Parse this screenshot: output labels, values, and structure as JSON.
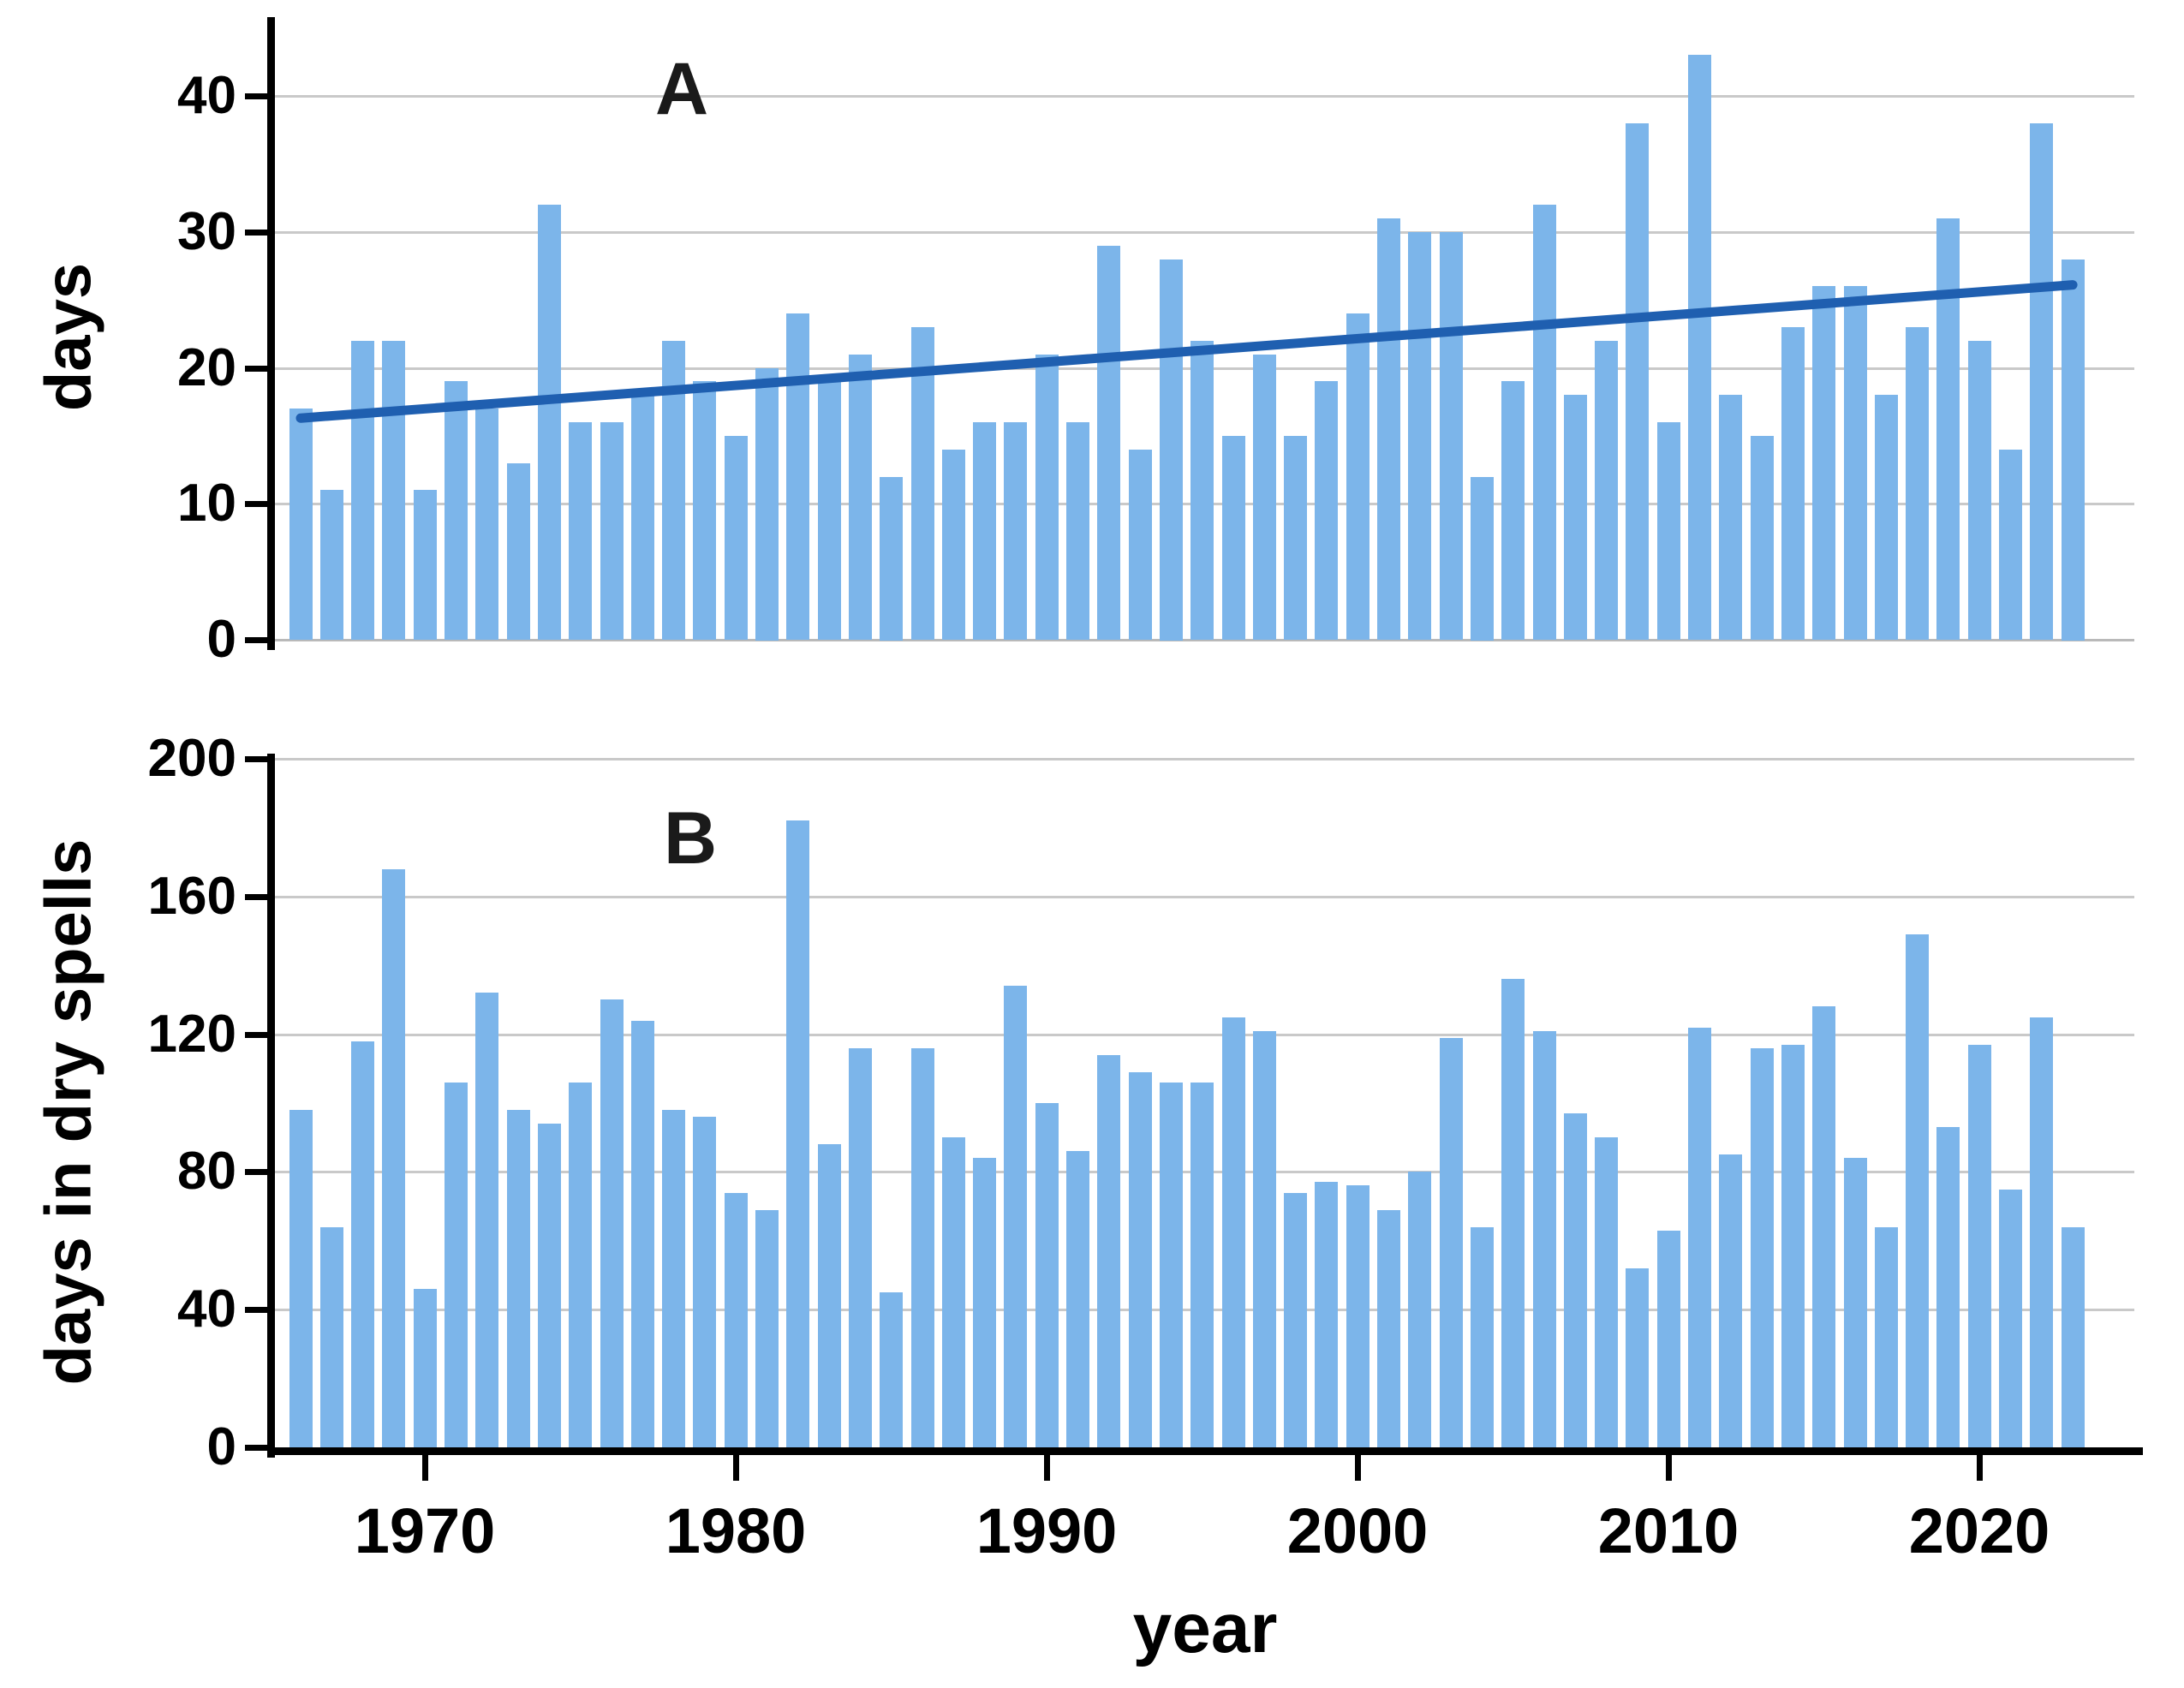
{
  "colors": {
    "bar_fill": "#7cb5ea",
    "trend_line": "#1f5fb0",
    "axis": "#000000",
    "gridline": "#c9c9c9",
    "background": "#ffffff"
  },
  "chart_data": [
    {
      "type": "bar",
      "panel_label": "A",
      "ylabel": "days",
      "xlabel": "year",
      "x": [
        1966,
        1967,
        1968,
        1969,
        1970,
        1971,
        1972,
        1973,
        1974,
        1975,
        1976,
        1977,
        1978,
        1979,
        1980,
        1981,
        1982,
        1983,
        1984,
        1985,
        1986,
        1987,
        1988,
        1989,
        1990,
        1991,
        1992,
        1993,
        1994,
        1995,
        1996,
        1997,
        1998,
        1999,
        2000,
        2001,
        2002,
        2003,
        2004,
        2005,
        2006,
        2007,
        2008,
        2009,
        2010,
        2011,
        2012,
        2013,
        2014,
        2015,
        2016,
        2017,
        2018,
        2019,
        2020,
        2021,
        2022,
        2023
      ],
      "values": [
        17,
        11,
        22,
        22,
        11,
        19,
        17,
        13,
        32,
        16,
        16,
        18,
        22,
        19,
        15,
        20,
        24,
        19,
        21,
        12,
        23,
        14,
        16,
        16,
        21,
        16,
        29,
        14,
        28,
        22,
        15,
        21,
        15,
        19,
        24,
        31,
        30,
        30,
        12,
        19,
        32,
        18,
        22,
        38,
        16,
        43,
        18,
        15,
        23,
        26,
        26,
        18,
        23,
        31,
        22,
        14,
        38,
        28
      ],
      "yticks": [
        0,
        10,
        20,
        30,
        40
      ],
      "ylim": [
        0,
        45.8
      ],
      "xticks": [
        1970,
        1980,
        1990,
        2000,
        2010,
        2020
      ],
      "grid": true,
      "legend_position": "none",
      "trend": {
        "x_start": 1966,
        "y_start": 16.3,
        "x_end": 2023,
        "y_end": 26.1
      }
    },
    {
      "type": "bar",
      "panel_label": "B",
      "ylabel": "days in dry spells",
      "xlabel": "year",
      "x": [
        1966,
        1967,
        1968,
        1969,
        1970,
        1971,
        1972,
        1973,
        1974,
        1975,
        1976,
        1977,
        1978,
        1979,
        1980,
        1981,
        1982,
        1983,
        1984,
        1985,
        1986,
        1987,
        1988,
        1989,
        1990,
        1991,
        1992,
        1993,
        1994,
        1995,
        1996,
        1997,
        1998,
        1999,
        2000,
        2001,
        2002,
        2003,
        2004,
        2005,
        2006,
        2007,
        2008,
        2009,
        2010,
        2011,
        2012,
        2013,
        2014,
        2015,
        2016,
        2017,
        2018,
        2019,
        2020,
        2021,
        2022,
        2023
      ],
      "values": [
        98,
        64,
        118,
        168,
        46,
        106,
        132,
        98,
        94,
        106,
        130,
        124,
        98,
        96,
        74,
        69,
        182,
        88,
        116,
        45,
        116,
        90,
        84,
        134,
        100,
        86,
        114,
        109,
        106,
        106,
        125,
        121,
        74,
        77,
        76,
        69,
        80,
        119,
        64,
        136,
        121,
        97,
        90,
        52,
        63,
        122,
        85,
        116,
        117,
        128,
        84,
        64,
        149,
        93,
        117,
        75,
        125,
        64
      ],
      "yticks": [
        0,
        40,
        80,
        120,
        160,
        200
      ],
      "ylim": [
        0,
        200
      ],
      "xticks": [
        1970,
        1980,
        1990,
        2000,
        2010,
        2020
      ],
      "grid": true,
      "legend_position": "none",
      "trend": null
    }
  ],
  "labels": {
    "panel_a": "A",
    "panel_b": "B",
    "ylabel_a": "days",
    "ylabel_b": "days in dry spells",
    "xlabel": "year"
  },
  "axis_tick_labels": {
    "panel_a_y": [
      "40",
      "30",
      "20",
      "10",
      "0"
    ],
    "panel_b_y": [
      "200",
      "160",
      "120",
      "80",
      "40",
      "0"
    ],
    "x": [
      "1970",
      "1980",
      "1990",
      "2000",
      "2010",
      "2020"
    ]
  }
}
